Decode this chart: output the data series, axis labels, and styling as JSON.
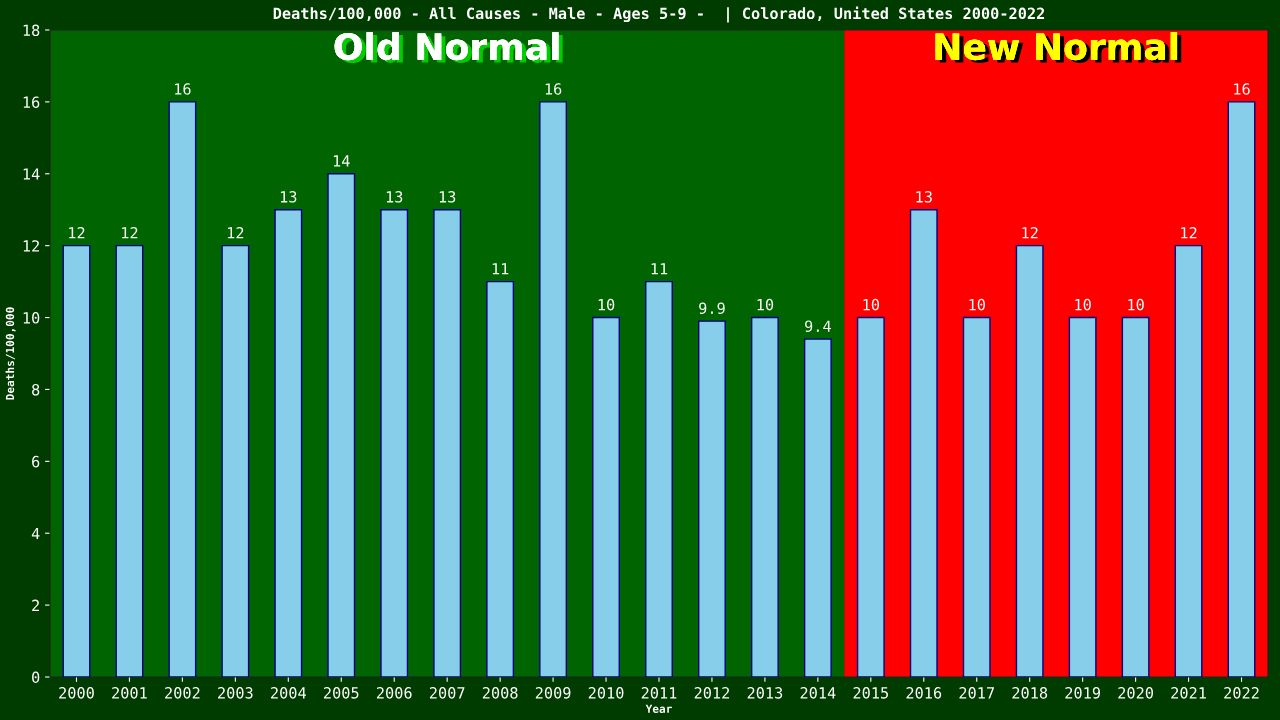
{
  "chart_data": {
    "type": "bar",
    "title": "Deaths/100,000 - All Causes - Male - Ages 5-9 -  | Colorado, United States 2000-2022",
    "xlabel": "Year",
    "ylabel": "Deaths/100,000",
    "categories": [
      "2000",
      "2001",
      "2002",
      "2003",
      "2004",
      "2005",
      "2006",
      "2007",
      "2008",
      "2009",
      "2010",
      "2011",
      "2012",
      "2013",
      "2014",
      "2015",
      "2016",
      "2017",
      "2018",
      "2019",
      "2020",
      "2021",
      "2022"
    ],
    "values": [
      12,
      12,
      16,
      12,
      13,
      14,
      13,
      13,
      11,
      16,
      10,
      11,
      9.9,
      10,
      9.4,
      10,
      13,
      10,
      12,
      10,
      10,
      12,
      16
    ],
    "color": "#87ceeb",
    "data_labels": true,
    "ylim": [
      0,
      18
    ],
    "yticks": [
      0,
      2,
      4,
      6,
      8,
      10,
      12,
      14,
      16,
      18
    ],
    "grid": false,
    "legend": false,
    "bands": [
      {
        "axis": "x",
        "from": "2000",
        "to": "2014",
        "label": "Old Normal",
        "color": "#006400"
      },
      {
        "axis": "x",
        "from": "2015",
        "to": "2022",
        "label": "New Normal",
        "color": "#ff0000"
      }
    ]
  }
}
